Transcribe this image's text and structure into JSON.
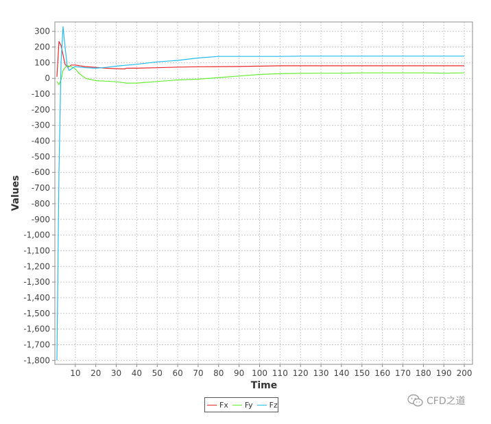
{
  "chart_data": {
    "type": "line",
    "xlabel": "Time",
    "ylabel": "Values",
    "xlim": [
      0,
      204
    ],
    "ylim": [
      -1825,
      360
    ],
    "grid": true,
    "legend_position": "bottom-center",
    "x_ticks": [
      10,
      20,
      30,
      40,
      50,
      60,
      70,
      80,
      90,
      100,
      110,
      120,
      130,
      140,
      150,
      160,
      170,
      180,
      190,
      200
    ],
    "y_ticks": [
      300,
      200,
      100,
      0,
      -100,
      -200,
      -300,
      -400,
      -500,
      -600,
      -700,
      -800,
      -900,
      -1000,
      -1100,
      -1200,
      -1300,
      -1400,
      -1500,
      -1600,
      -1700,
      -1800
    ],
    "y_tick_labels": [
      "300",
      "200",
      "100",
      "0",
      "-100",
      "-200",
      "-300",
      "-400",
      "-500",
      "-600",
      "-700",
      "-800",
      "-900",
      "-1,000",
      "-1,100",
      "-1,200",
      "-1,300",
      "-1,400",
      "-1,500",
      "-1,600",
      "-1,700",
      "-1,800"
    ],
    "series": [
      {
        "name": "Fx",
        "color": "#e8262a",
        "x": [
          1,
          2,
          3,
          4,
          5,
          6,
          7,
          8,
          10,
          12,
          15,
          20,
          25,
          30,
          34,
          35,
          40,
          50,
          60,
          70,
          80,
          90,
          100,
          110,
          120,
          130,
          140,
          150,
          160,
          170,
          180,
          190,
          200
        ],
        "y": [
          10,
          235,
          210,
          150,
          90,
          75,
          75,
          85,
          85,
          80,
          75,
          70,
          65,
          62,
          60,
          65,
          65,
          68,
          72,
          74,
          75,
          76,
          78,
          80,
          80,
          80,
          80,
          80,
          80,
          80,
          80,
          80,
          80
        ]
      },
      {
        "name": "Fy",
        "color": "#66ee33",
        "x": [
          1,
          2,
          3,
          4,
          5,
          6,
          7,
          8,
          10,
          12,
          15,
          20,
          25,
          30,
          35,
          40,
          50,
          60,
          70,
          80,
          90,
          100,
          110,
          120,
          130,
          140,
          150,
          160,
          170,
          180,
          190,
          200
        ],
        "y": [
          -20,
          -40,
          -10,
          50,
          70,
          80,
          78,
          75,
          60,
          30,
          0,
          -15,
          -18,
          -22,
          -30,
          -30,
          -20,
          -10,
          -5,
          5,
          15,
          25,
          30,
          32,
          33,
          33,
          35,
          35,
          35,
          35,
          33,
          35
        ]
      },
      {
        "name": "Fz",
        "color": "#22bbee",
        "x": [
          1,
          2,
          3,
          4,
          5,
          6,
          7,
          8,
          9,
          10,
          12,
          15,
          20,
          25,
          30,
          40,
          50,
          60,
          70,
          80,
          90,
          100,
          110,
          120,
          130,
          140,
          150,
          160,
          170,
          180,
          190,
          200
        ],
        "y": [
          -1800,
          -600,
          100,
          330,
          200,
          80,
          50,
          60,
          70,
          75,
          72,
          68,
          65,
          70,
          78,
          90,
          105,
          115,
          130,
          140,
          140,
          140,
          140,
          142,
          142,
          142,
          142,
          142,
          142,
          142,
          142,
          142
        ]
      }
    ]
  },
  "watermark": {
    "text": "CFD之道",
    "icon": "wechat-icon"
  }
}
